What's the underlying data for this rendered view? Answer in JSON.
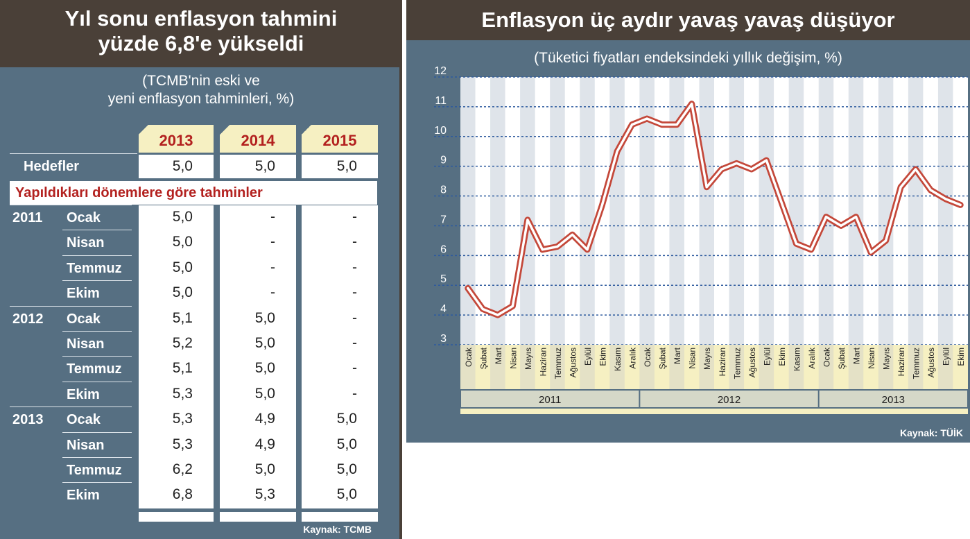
{
  "left": {
    "title_line1": "Yıl sonu enflasyon tahmini",
    "title_line2": "yüzde 6,8'e yükseldi",
    "subtitle_line1": "(TCMB'nin eski ve",
    "subtitle_line2": "yeni enflasyon tahminleri, %)",
    "year_headers": [
      "2013",
      "2014",
      "2015"
    ],
    "targets_label": "Hedefler",
    "targets": [
      "5,0",
      "5,0",
      "5,0"
    ],
    "predictions_label": "Yapıldıkları dönemlere göre tahminler",
    "rows": [
      {
        "year": "2011",
        "month": "Ocak",
        "values": [
          "5,0",
          "-",
          "-"
        ]
      },
      {
        "year": "",
        "month": "Nisan",
        "values": [
          "5,0",
          "-",
          "-"
        ]
      },
      {
        "year": "",
        "month": "Temmuz",
        "values": [
          "5,0",
          "-",
          "-"
        ]
      },
      {
        "year": "",
        "month": "Ekim",
        "values": [
          "5,0",
          "-",
          "-"
        ]
      },
      {
        "year": "2012",
        "month": "Ocak",
        "values": [
          "5,1",
          "5,0",
          "-"
        ]
      },
      {
        "year": "",
        "month": "Nisan",
        "values": [
          "5,2",
          "5,0",
          "-"
        ]
      },
      {
        "year": "",
        "month": "Temmuz",
        "values": [
          "5,1",
          "5,0",
          "-"
        ]
      },
      {
        "year": "",
        "month": "Ekim",
        "values": [
          "5,3",
          "5,0",
          "-"
        ]
      },
      {
        "year": "2013",
        "month": "Ocak",
        "values": [
          "5,3",
          "4,9",
          "5,0"
        ]
      },
      {
        "year": "",
        "month": "Nisan",
        "values": [
          "5,3",
          "4,9",
          "5,0"
        ]
      },
      {
        "year": "",
        "month": "Temmuz",
        "values": [
          "6,2",
          "5,0",
          "5,0"
        ]
      },
      {
        "year": "",
        "month": "Ekim",
        "values": [
          "6,8",
          "5,3",
          "5,0"
        ]
      }
    ],
    "source": "Kaynak: TCMB"
  },
  "right": {
    "title": "Enflasyon üç aydır yavaş yavaş düşüyor",
    "subtitle": "(Tüketici fiyatları endeksindeki yıllık değişim, %)",
    "source": "Kaynak: TÜİK"
  },
  "colors": {
    "panel": "#566f82",
    "header": "#4a4038",
    "accent_red": "#b3211f",
    "cream": "#f6f0c2",
    "line": "#d9695a"
  },
  "chart_data": {
    "type": "line",
    "categories": [
      "Ocak",
      "Şubat",
      "Mart",
      "Nisan",
      "Mayıs",
      "Haziran",
      "Temmuz",
      "Ağustos",
      "Eylül",
      "Ekim",
      "Kasım",
      "Aralık",
      "Ocak",
      "Şubat",
      "Mart",
      "Nisan",
      "Mayıs",
      "Haziran",
      "Temmuz",
      "Ağustos",
      "Eylül",
      "Ekim",
      "Kasım",
      "Aralık",
      "Ocak",
      "Şubat",
      "Mart",
      "Nisan",
      "Mayıs",
      "Haziran",
      "Temmuz",
      "Ağustos",
      "Eylül",
      "Ekim"
    ],
    "groups": [
      {
        "label": "2011",
        "count": 12
      },
      {
        "label": "2012",
        "count": 12
      },
      {
        "label": "2013",
        "count": 10
      }
    ],
    "values": [
      4.9,
      4.2,
      4.0,
      4.3,
      7.2,
      6.2,
      6.3,
      6.7,
      6.2,
      7.7,
      9.5,
      10.4,
      10.6,
      10.4,
      10.4,
      11.1,
      8.3,
      8.9,
      9.1,
      8.9,
      9.2,
      7.8,
      6.4,
      6.2,
      7.3,
      7.0,
      7.3,
      6.1,
      6.5,
      8.3,
      8.9,
      8.2,
      7.9,
      7.7
    ],
    "yticks": [
      3,
      4,
      5,
      6,
      7,
      8,
      9,
      10,
      11,
      12
    ],
    "ylim": [
      3,
      12
    ],
    "grid": true
  }
}
